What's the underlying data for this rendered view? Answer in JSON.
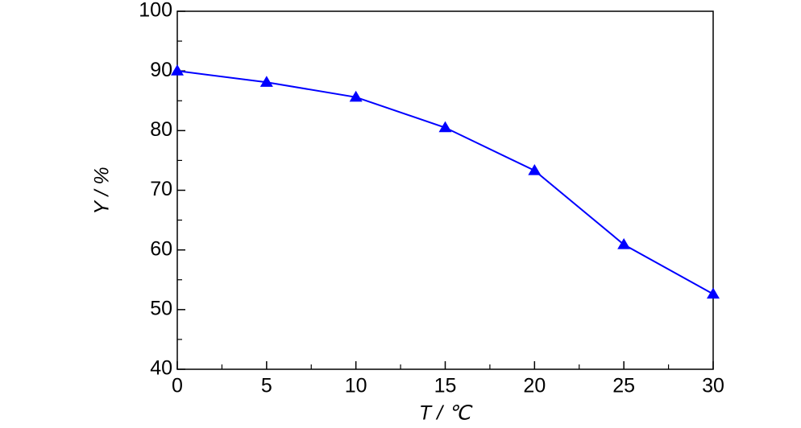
{
  "chart_data": {
    "type": "line",
    "xlabel": "T / ℃",
    "ylabel": "Y / %",
    "x": [
      0,
      5,
      10,
      15,
      20,
      25,
      30
    ],
    "series": [
      {
        "name": "Y",
        "color": "#0000ff",
        "values": [
          90.0,
          88.1,
          85.6,
          80.5,
          73.3,
          60.9,
          52.6
        ]
      }
    ],
    "xlim": [
      0,
      30
    ],
    "xticks": [
      0,
      5,
      10,
      15,
      20,
      25,
      30
    ],
    "ylim": [
      40,
      100
    ],
    "yticks": [
      40,
      50,
      60,
      70,
      80,
      90,
      100
    ],
    "marker": "triangle",
    "grid": false
  }
}
